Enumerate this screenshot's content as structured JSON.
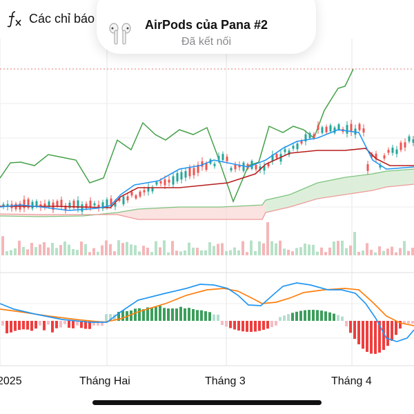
{
  "toolbar": {
    "indicators_label": "Các chỉ báo",
    "icon": "function-fx-icon"
  },
  "airpods_popup": {
    "device_name": "AirPods của Pana #2",
    "status": "Đã kết nối",
    "icon": "airpods-icon"
  },
  "chart_data": {
    "type": "candlestick-with-indicators",
    "colors": {
      "up": "#26a69a",
      "down": "#ef5350",
      "cloud_span_a": "#4caf50",
      "cloud_span_b": "#ef9a9a",
      "base_line": "#b71c1c",
      "conversion_line": "#2196f3",
      "lagging_span": "#43a047",
      "macd_line": "#2196f3",
      "signal_line": "#ff7f0e"
    },
    "x_tick_labels": [
      "2025",
      "Tháng Hai",
      "Tháng 3",
      "Tháng 4"
    ],
    "panels": [
      "price",
      "volume",
      "macd"
    ]
  },
  "home_indicator": {
    "visible": true
  }
}
